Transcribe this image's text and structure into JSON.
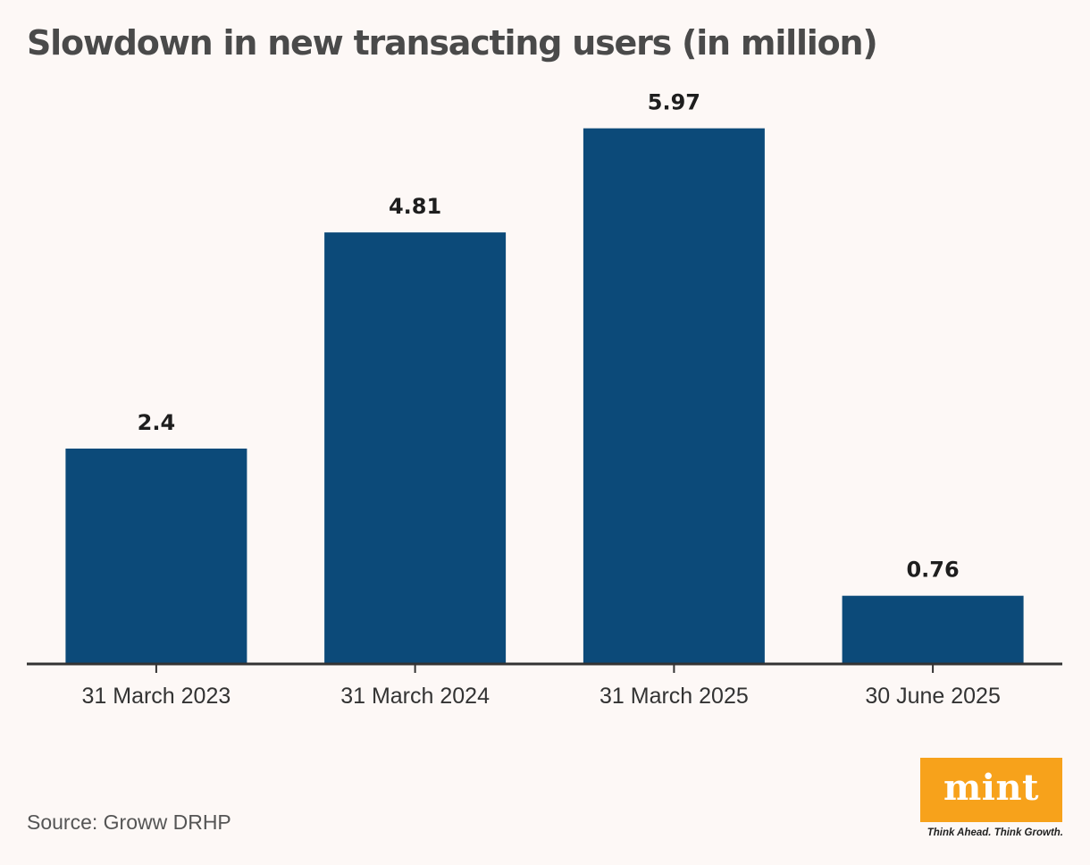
{
  "chart_data": {
    "type": "bar",
    "title": "Slowdown in new transacting users (in million)",
    "categories": [
      "31 March 2023",
      "31 March 2024",
      "31 March 2025",
      "30 June 2025"
    ],
    "values": [
      2.4,
      4.81,
      5.97,
      0.76
    ],
    "value_labels": [
      "2.4",
      "4.81",
      "5.97",
      "0.76"
    ],
    "xlabel": "",
    "ylabel": "",
    "ylim": [
      0,
      6
    ],
    "grid": false,
    "colors": {
      "bar": "#0c4a79",
      "axis": "#333333",
      "value_label": "#1e1e1e",
      "tick_label": "#333333"
    }
  },
  "footer": {
    "source": "Source: Groww DRHP",
    "logo_word": "mint",
    "tagline": "Think Ahead. Think Growth.",
    "logo_color": "#f7a21b"
  }
}
